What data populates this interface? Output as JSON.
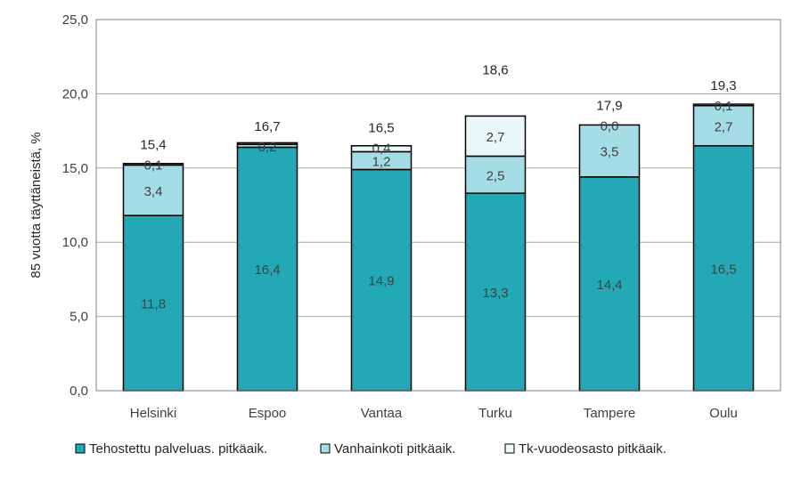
{
  "chart_data": {
    "type": "bar",
    "stacked": true,
    "categories": [
      "Helsinki",
      "Espoo",
      "Vantaa",
      "Turku",
      "Tampere",
      "Oulu"
    ],
    "series": [
      {
        "name": "Tehostettu palveluas. pitkäaik.",
        "color": "#22a9b5",
        "values": [
          11.8,
          16.4,
          14.9,
          13.3,
          14.4,
          16.5
        ],
        "labels": [
          "11,8",
          "16,4",
          "14,9",
          "13,3",
          "14,4",
          "16,5"
        ]
      },
      {
        "name": "Vanhainkoti pitkäaik.",
        "color": "#a4dde6",
        "values": [
          3.4,
          0.2,
          1.2,
          2.5,
          3.5,
          2.7
        ],
        "labels": [
          "3,4",
          "0,2",
          "1,2",
          "2,5",
          "3,5",
          "2,7"
        ]
      },
      {
        "name": "Tk-vuodeosasto pitkäaik.",
        "color": "#eaf8fa",
        "values": [
          0.1,
          0.1,
          0.4,
          2.7,
          0.0,
          0.1
        ],
        "labels": [
          "0,1",
          "",
          "0,4",
          "2,7",
          "0,0",
          "0,1"
        ]
      }
    ],
    "totals": [
      "15,4",
      "16,7",
      "16,5",
      "18,6",
      "17,9",
      "19,3"
    ],
    "yticks": [
      "0,0",
      "5,0",
      "10,0",
      "15,0",
      "20,0",
      "25,0"
    ],
    "ylim": [
      0,
      25
    ],
    "ylabel": "85 vuotta täyttäneistä, %",
    "xlabel": "",
    "grid": true,
    "legend_position": "bottom"
  }
}
